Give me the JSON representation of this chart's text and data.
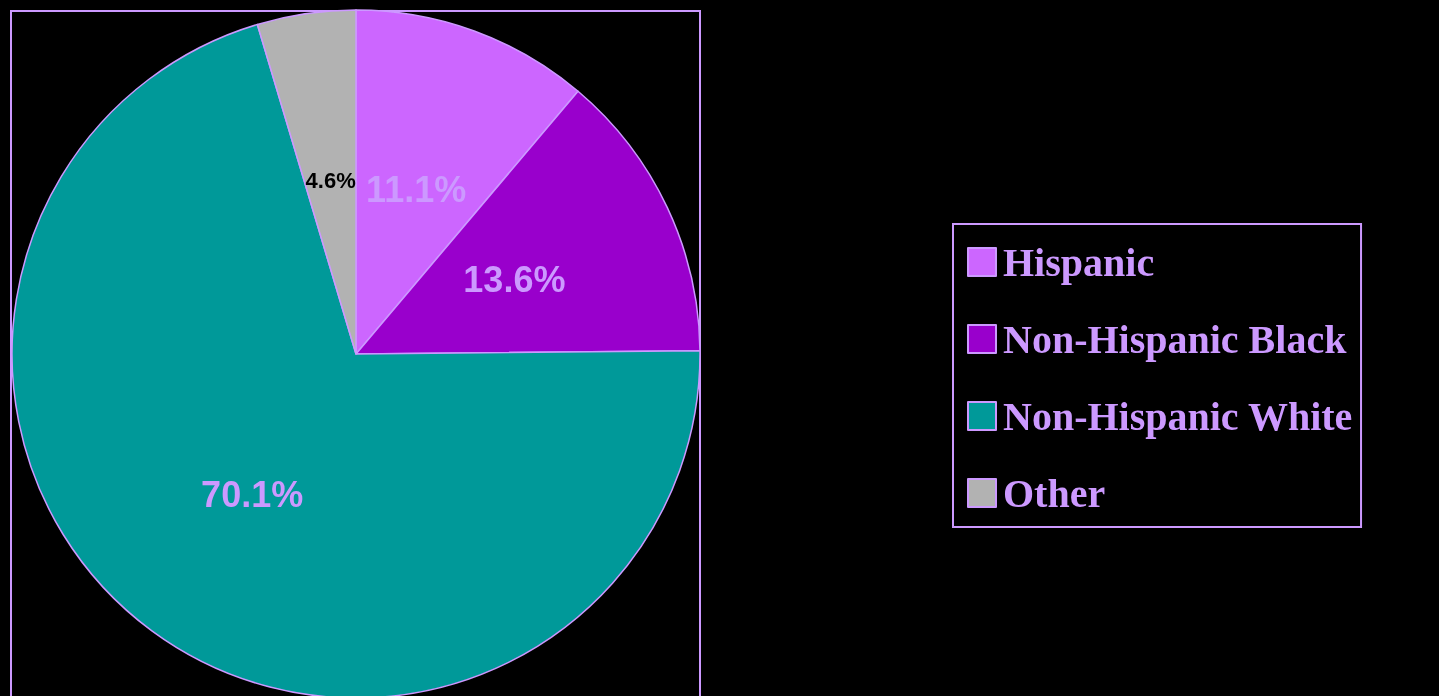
{
  "chart_data": {
    "type": "pie",
    "categories": [
      "Hispanic",
      "Non-Hispanic Black",
      "Non-Hispanic White",
      "Other"
    ],
    "values": [
      11.1,
      13.6,
      70.1,
      4.6
    ],
    "colors": [
      "#cc66ff",
      "#9900cc",
      "#009999",
      "#b2b2b2"
    ],
    "value_labels": [
      "11.1%",
      "13.6%",
      "70.1%",
      "4.6%"
    ],
    "legend": "right"
  }
}
